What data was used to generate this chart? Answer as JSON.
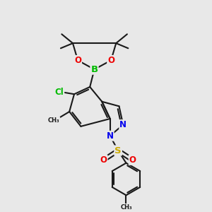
{
  "bg_color": "#e8e8e8",
  "bond_color": "#1a1a1a",
  "bond_width": 1.5,
  "atom_colors": {
    "B": "#00bb00",
    "O": "#ee0000",
    "N": "#0000ee",
    "Cl": "#00bb00",
    "S": "#ccaa00",
    "C": "#1a1a1a"
  },
  "font_size": 8.5,
  "fig_size": [
    3.0,
    3.0
  ],
  "dpi": 100
}
